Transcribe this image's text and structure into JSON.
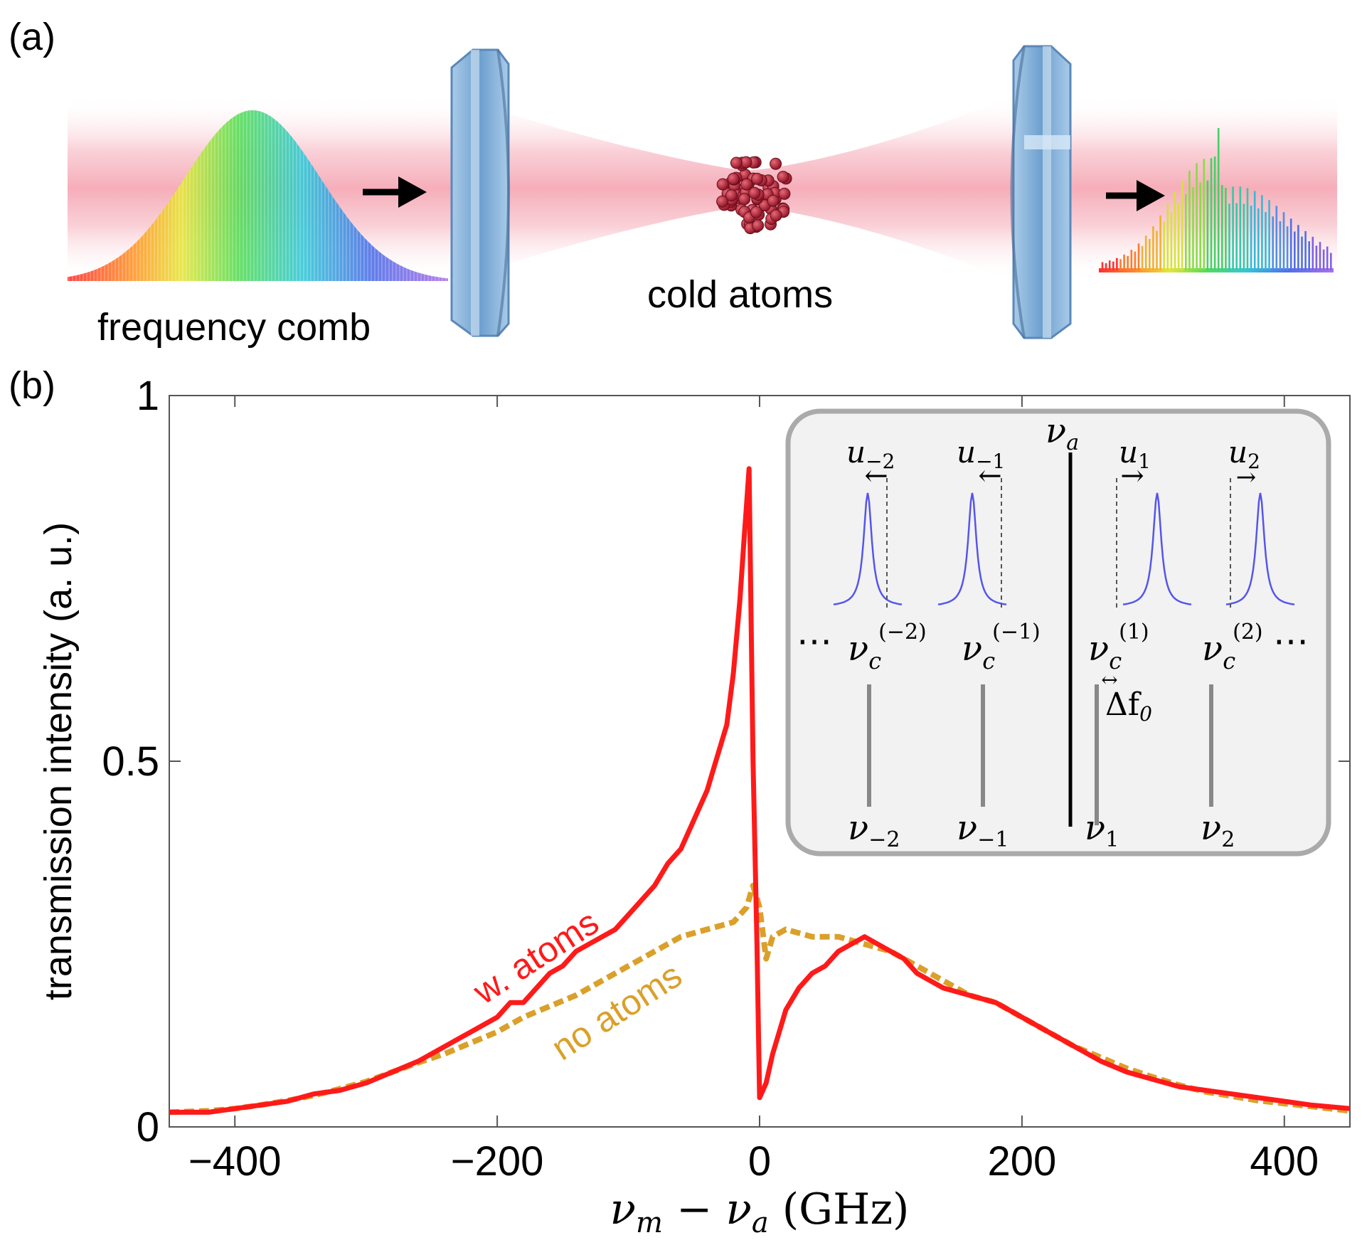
{
  "panel_a": {
    "label": "(a)",
    "comb_label": "frequency comb",
    "atoms_label": "cold atoms"
  },
  "panel_b": {
    "label": "(b)"
  },
  "colors": {
    "with_atoms": "#ff1a1a",
    "no_atoms": "#daa02a",
    "lorentz": "#5555ee",
    "beam": "#f5a8b4",
    "mirror": "#8fb8dc"
  },
  "inset": {
    "nu_a": "ν",
    "nu_a_sub": "a",
    "shift_labels": [
      {
        "base": "u",
        "sub": "−2",
        "arrow": "←"
      },
      {
        "base": "u",
        "sub": "−1",
        "arrow": "←"
      },
      {
        "base": "u",
        "sub": "1",
        "arrow": "→"
      },
      {
        "base": "u",
        "sub": "2",
        "arrow": "→"
      }
    ],
    "cavity_labels": [
      {
        "base": "ν",
        "sub": "c",
        "sup": "(−2)"
      },
      {
        "base": "ν",
        "sub": "c",
        "sup": "(−1)"
      },
      {
        "base": "ν",
        "sub": "c",
        "sup": "(1)"
      },
      {
        "base": "ν",
        "sub": "c",
        "sup": "(2)"
      }
    ],
    "comb_labels": [
      {
        "base": "ν",
        "sub": "−2"
      },
      {
        "base": "ν",
        "sub": "−1"
      },
      {
        "base": "ν",
        "sub": "1"
      },
      {
        "base": "ν",
        "sub": "2"
      }
    ],
    "ellipsis": "⋯",
    "delta_label": "Δf",
    "delta_sub": "0",
    "delta_arrow": "↔"
  },
  "chart_data": {
    "type": "line",
    "title": "",
    "xlabel_parts": {
      "a": "ν",
      "a_sub": "m",
      "mid": " − ",
      "b": "ν",
      "b_sub": "a",
      "unit": " (GHz)"
    },
    "ylabel": "transmission intensity (a. u.)",
    "xlim": [
      -450,
      450
    ],
    "ylim": [
      0,
      1
    ],
    "xticks": [
      -400,
      -200,
      0,
      200,
      400
    ],
    "xtick_labels": [
      "−400",
      "−200",
      "0",
      "200",
      "400"
    ],
    "yticks": [
      0,
      0.5,
      1
    ],
    "ytick_labels": [
      "0",
      "0.5",
      "1"
    ],
    "series": [
      {
        "name": "w. atoms",
        "style": "solid",
        "x": [
          -450,
          -420,
          -400,
          -380,
          -360,
          -340,
          -320,
          -300,
          -280,
          -260,
          -240,
          -220,
          -200,
          -190,
          -180,
          -170,
          -160,
          -150,
          -140,
          -130,
          -120,
          -110,
          -100,
          -90,
          -80,
          -70,
          -60,
          -50,
          -40,
          -35,
          -30,
          -25,
          -20,
          -15,
          -12,
          -10,
          -8,
          -5,
          -2,
          0,
          5,
          10,
          15,
          20,
          30,
          40,
          50,
          60,
          70,
          80,
          90,
          100,
          110,
          120,
          130,
          140,
          160,
          180,
          200,
          220,
          240,
          260,
          280,
          300,
          320,
          340,
          360,
          380,
          400,
          420,
          450
        ],
        "y": [
          0.02,
          0.02,
          0.025,
          0.03,
          0.035,
          0.045,
          0.05,
          0.06,
          0.075,
          0.09,
          0.11,
          0.13,
          0.15,
          0.17,
          0.17,
          0.19,
          0.21,
          0.22,
          0.24,
          0.25,
          0.26,
          0.27,
          0.29,
          0.31,
          0.33,
          0.36,
          0.38,
          0.42,
          0.46,
          0.49,
          0.52,
          0.55,
          0.62,
          0.72,
          0.8,
          0.85,
          0.9,
          0.5,
          0.25,
          0.04,
          0.06,
          0.1,
          0.13,
          0.16,
          0.19,
          0.21,
          0.22,
          0.24,
          0.25,
          0.26,
          0.25,
          0.24,
          0.23,
          0.21,
          0.2,
          0.19,
          0.18,
          0.17,
          0.15,
          0.13,
          0.11,
          0.09,
          0.075,
          0.065,
          0.055,
          0.05,
          0.045,
          0.04,
          0.035,
          0.03,
          0.025
        ]
      },
      {
        "name": "no atoms",
        "style": "dashed",
        "x": [
          -450,
          -420,
          -400,
          -380,
          -360,
          -340,
          -320,
          -300,
          -280,
          -260,
          -240,
          -220,
          -200,
          -180,
          -160,
          -140,
          -120,
          -100,
          -80,
          -60,
          -40,
          -20,
          -10,
          -5,
          0,
          5,
          10,
          20,
          40,
          60,
          80,
          100,
          120,
          140,
          160,
          180,
          200,
          220,
          240,
          260,
          280,
          300,
          320,
          340,
          360,
          380,
          400,
          420,
          450
        ],
        "y": [
          0.02,
          0.022,
          0.025,
          0.03,
          0.036,
          0.043,
          0.052,
          0.062,
          0.075,
          0.088,
          0.1,
          0.115,
          0.13,
          0.15,
          0.165,
          0.18,
          0.2,
          0.22,
          0.24,
          0.26,
          0.27,
          0.28,
          0.3,
          0.33,
          0.3,
          0.23,
          0.26,
          0.27,
          0.26,
          0.26,
          0.25,
          0.24,
          0.22,
          0.2,
          0.18,
          0.17,
          0.15,
          0.13,
          0.11,
          0.095,
          0.08,
          0.068,
          0.057,
          0.048,
          0.042,
          0.036,
          0.032,
          0.028,
          0.022
        ]
      }
    ]
  }
}
